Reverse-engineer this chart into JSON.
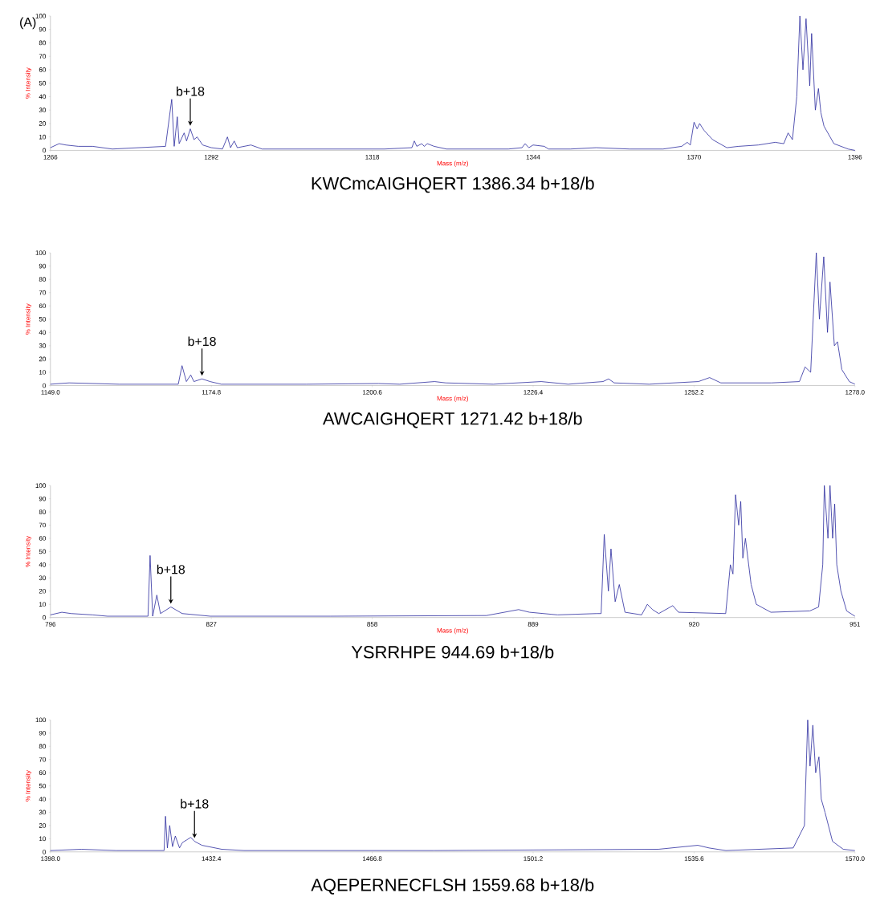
{
  "chart_data": [
    {
      "type": "line",
      "title": "(A)",
      "xlabel": "Mass (m/z)",
      "ylabel": "% Intensity",
      "color": "#2b2b9e",
      "x": [
        1266,
        1267.4,
        1268.5,
        1270.5,
        1272.8,
        1276,
        1284.6,
        1285.6,
        1286.0,
        1286.5,
        1286.8,
        1287.6,
        1288.0,
        1288.6,
        1289.2,
        1289.7,
        1290.6,
        1292,
        1293.8,
        1294.6,
        1295.1,
        1295.7,
        1296.2,
        1298.4,
        1300.2,
        1310,
        1320,
        1324.4,
        1324.8,
        1325.2,
        1326,
        1326.4,
        1326.9,
        1328,
        1330,
        1340,
        1342.2,
        1342.7,
        1343.3,
        1344,
        1345.8,
        1346.5,
        1350,
        1354.2,
        1359.6,
        1365,
        1368,
        1368.9,
        1369.4,
        1370,
        1370.5,
        1370.9,
        1371.6,
        1373,
        1375.3,
        1377.2,
        1380.4,
        1383.1,
        1384.5,
        1385.2,
        1385.9,
        1386.6,
        1387.1,
        1387.6,
        1388.1,
        1388.7,
        1389,
        1389.6,
        1390.1,
        1390.5,
        1391,
        1392.6,
        1394.9,
        1396
      ],
      "values": [
        2,
        5,
        4,
        3,
        3,
        1,
        3,
        38,
        3,
        25,
        5,
        13,
        7,
        16,
        8,
        10,
        4,
        2,
        1,
        10,
        2,
        7,
        2,
        4,
        1,
        1,
        1,
        2,
        7,
        3,
        5,
        3,
        5,
        3,
        1,
        1,
        2,
        5,
        2,
        4,
        3,
        1,
        1,
        2,
        1,
        1,
        3,
        6,
        4,
        21,
        16,
        20,
        15,
        8,
        2,
        3,
        4,
        6,
        5,
        13,
        8,
        40,
        100,
        60,
        98,
        48,
        87,
        30,
        46,
        28,
        18,
        5,
        1,
        0
      ],
      "xlim": [
        1266,
        1396
      ],
      "xticks": [
        1266,
        1292,
        1318,
        1344,
        1370,
        1396
      ],
      "ylim": [
        0,
        100
      ],
      "yticks": [
        0,
        10,
        20,
        30,
        40,
        50,
        60,
        70,
        80,
        90,
        100
      ],
      "annotations": [
        {
          "text": "b+18",
          "x": 1288.6,
          "y": 16
        },
        "KWCmcAIGHQERT    1386.34    b+18/b"
      ]
    },
    {
      "type": "line",
      "xlabel": "Mass (m/z)",
      "ylabel": "% Intensity",
      "color": "#2b2b9e",
      "x": [
        1149,
        1152,
        1160,
        1169.5,
        1170.1,
        1170.8,
        1171.5,
        1172,
        1173.3,
        1174.6,
        1176.4,
        1190,
        1201.6,
        1205,
        1210.6,
        1212.4,
        1220,
        1227.7,
        1232,
        1237.6,
        1238.5,
        1239.4,
        1245,
        1252.9,
        1254.7,
        1256.5,
        1264.6,
        1269.1,
        1270,
        1270.9,
        1271.8,
        1272.3,
        1273,
        1273.6,
        1274,
        1274.7,
        1275.2,
        1275.9,
        1277.1,
        1278
      ],
      "values": [
        1,
        2,
        1,
        1,
        15,
        3,
        8,
        3,
        5,
        3,
        1,
        1,
        1.5,
        1,
        3,
        2,
        1,
        3,
        1,
        3,
        5,
        2,
        1,
        3,
        6,
        2,
        2,
        3,
        14,
        10,
        100,
        50,
        97,
        40,
        78,
        30,
        33,
        12,
        3,
        1
      ],
      "xlim": [
        1149,
        1278
      ],
      "xticks": [
        {
          "value": 1149,
          "label": "1149.0"
        },
        1174.8,
        1200.6,
        1226.4,
        1252.2,
        {
          "value": 1278,
          "label": "1278.0"
        }
      ],
      "ylim": [
        0,
        100
      ],
      "yticks": [
        0,
        10,
        20,
        30,
        40,
        50,
        60,
        70,
        80,
        90,
        100
      ],
      "annotations": [
        {
          "text": "b+18",
          "x": 1173.3,
          "y": 5
        },
        "AWCAIGHQERT    1271.42    b+18/b"
      ]
    },
    {
      "type": "line",
      "xlabel": "Mass (m/z)",
      "ylabel": "% Intensity",
      "color": "#2b2b9e",
      "x": [
        796,
        798.2,
        800,
        804.1,
        807,
        814.8,
        815.2,
        815.7,
        816.5,
        817.2,
        819.2,
        821.4,
        826.8,
        850,
        880,
        886.2,
        888.3,
        893.7,
        901.3,
        902.1,
        902.7,
        903.5,
        904,
        904.8,
        905.6,
        906.7,
        909.9,
        911,
        912,
        913.2,
        915.9,
        917,
        926.1,
        927,
        927.5,
        928,
        928.6,
        929,
        929.4,
        929.9,
        931,
        932,
        934.8,
        942.3,
        944,
        944.8,
        945.1,
        945.8,
        946.2,
        946.7,
        947.1,
        947.5,
        948.3,
        949.4,
        951
      ],
      "values": [
        2,
        4,
        3,
        2,
        1,
        1,
        47,
        1,
        17,
        3,
        8,
        3,
        1,
        1,
        1.5,
        6,
        4,
        2,
        3,
        3,
        63,
        20,
        52,
        12,
        25,
        4,
        2,
        10,
        6,
        3,
        9,
        4,
        3,
        40,
        33,
        93,
        70,
        88,
        45,
        60,
        25,
        10,
        4,
        5,
        8,
        40,
        100,
        60,
        100,
        60,
        86,
        40,
        20,
        5,
        1
      ],
      "xlim": [
        796,
        951
      ],
      "xticks": [
        796,
        827,
        858,
        889,
        920,
        951
      ],
      "ylim": [
        0,
        100
      ],
      "yticks": [
        0,
        10,
        20,
        30,
        40,
        50,
        60,
        70,
        80,
        90,
        100
      ],
      "annotations": [
        {
          "text": "b+18",
          "x": 819.2,
          "y": 8
        },
        "YSRRHPE    944.69    b+18/b"
      ]
    },
    {
      "type": "line",
      "ylabel": "% Intensity",
      "color": "#2b2b9e",
      "x": [
        1398,
        1404.6,
        1412,
        1422.3,
        1422.6,
        1423,
        1423.5,
        1424.1,
        1424.7,
        1425.6,
        1426.2,
        1427.1,
        1428,
        1428.8,
        1430.4,
        1434.6,
        1439.4,
        1480,
        1528,
        1536.4,
        1538.8,
        1542.4,
        1556.8,
        1559.2,
        1559.9,
        1560.4,
        1561,
        1561.6,
        1562.3,
        1562.8,
        1563.6,
        1565.2,
        1567.5,
        1570
      ],
      "values": [
        1,
        2,
        1,
        1,
        27,
        3,
        20,
        4,
        12,
        3,
        7,
        9,
        11,
        8,
        5,
        2,
        1,
        1,
        2,
        5,
        3,
        1,
        3,
        20,
        100,
        65,
        96,
        60,
        72,
        40,
        30,
        8,
        2,
        1
      ],
      "xlim": [
        1398,
        1570
      ],
      "xticks": [
        {
          "value": 1398,
          "label": "1398.0"
        },
        1432.4,
        1466.8,
        1501.2,
        1535.6,
        {
          "value": 1570,
          "label": "1570.0"
        }
      ],
      "ylim": [
        0,
        100
      ],
      "yticks": [
        0,
        10,
        20,
        30,
        40,
        50,
        60,
        70,
        80,
        90,
        100
      ],
      "annotations": [
        {
          "text": "b+18",
          "x": 1428.8,
          "y": 8
        },
        "AQEPERNECFLSH    1559.68    b+18/b"
      ]
    }
  ]
}
